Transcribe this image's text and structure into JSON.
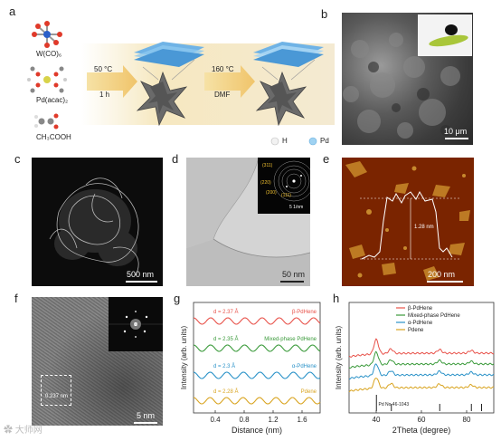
{
  "panels": {
    "a": {
      "letter": "a",
      "reagents": [
        "W(CO)₆",
        "Pd(acac)₂",
        "CH₃COOH"
      ],
      "step1": {
        "temp": "50 °C",
        "time": "1 h"
      },
      "step2": {
        "temp": "160 °C",
        "solvent": "DMF"
      },
      "legend": {
        "h": "H",
        "pd": "Pd"
      }
    },
    "b": {
      "letter": "b",
      "scale": "10 μm"
    },
    "c": {
      "letter": "c",
      "scale": "500 nm"
    },
    "d": {
      "letter": "d",
      "scale": "50 nm",
      "inset_scale": "5 1/nm",
      "rings": [
        "(311)",
        "(220)",
        "(200)",
        "(111)"
      ]
    },
    "e": {
      "letter": "e",
      "scale": "200 nm",
      "height": "1.28 nm"
    },
    "f": {
      "letter": "f",
      "scale": "5 nm",
      "spacing": "0.237 nm"
    },
    "g": {
      "letter": "g",
      "ylabel": "Intensity (arb. units)",
      "xlabel": "Distance (nm)",
      "ticks": [
        "0.4",
        "0.8",
        "1.2",
        "1.6"
      ]
    },
    "h": {
      "letter": "h",
      "ylabel": "Intensity (arb. units)",
      "xlabel": "2Theta (degree)",
      "ticks": [
        "40",
        "60",
        "80"
      ],
      "ref": "Pd No.46-1043"
    }
  },
  "chart_data": [
    {
      "type": "line",
      "xlabel": "Distance (nm)",
      "ylabel": "Intensity (arb. units)",
      "xlim": [
        0.1,
        1.85
      ],
      "series": [
        {
          "name": "β-PdHene",
          "d_label": "d = 2.37 Å",
          "period": 0.237,
          "color": "#e8524a"
        },
        {
          "name": "Mixed-phase PdHene",
          "d_label": "d = 2.35 Å",
          "period": 0.235,
          "color": "#3a9a3a"
        },
        {
          "name": "α-PdHene",
          "d_label": "d = 2.3 Å",
          "period": 0.23,
          "color": "#2a92c8"
        },
        {
          "name": "Pdene",
          "d_label": "d = 2.28 Å",
          "period": 0.228,
          "color": "#d9a420"
        }
      ]
    },
    {
      "type": "line",
      "xlabel": "2Theta (degree)",
      "ylabel": "Intensity (arb. units)",
      "xlim": [
        28,
        92
      ],
      "peaks": [
        40,
        46.5,
        68,
        82
      ],
      "reference_sticks": [
        40.1,
        46.7,
        68.1,
        82.1,
        86.6
      ],
      "series": [
        {
          "name": "β-PdHene",
          "color": "#e8524a"
        },
        {
          "name": "Mixed-phase PdHene",
          "color": "#3a9a3a"
        },
        {
          "name": "α-PdHene",
          "color": "#2a92c8"
        },
        {
          "name": "Pdene",
          "color": "#d9a420"
        }
      ]
    }
  ]
}
